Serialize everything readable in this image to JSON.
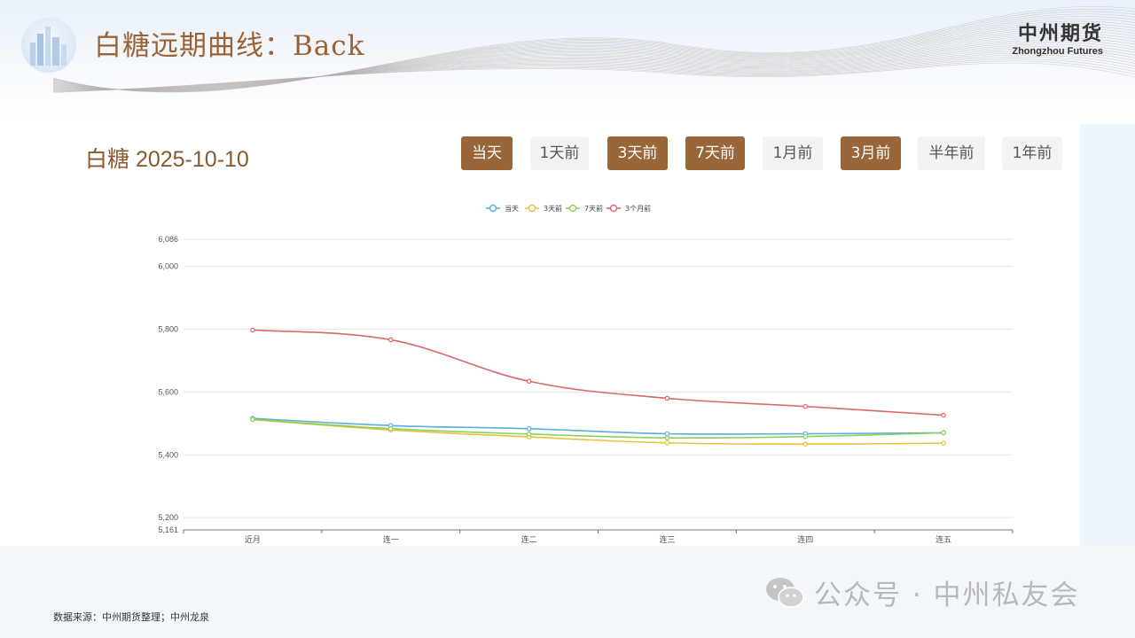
{
  "page": {
    "title": "白糖远期曲线：Back",
    "brand_cn": "中州期货",
    "brand_en": "Zhongzhou Futures",
    "source_note": "数据来源：中州期货整理；中州龙泉",
    "watermark": "公众号 · 中州私友会"
  },
  "panel": {
    "heading": "白糖 2025-10-10",
    "buttons": [
      {
        "label": "当天",
        "active": true
      },
      {
        "label": "1天前",
        "active": false
      },
      {
        "label": "3天前",
        "active": true
      },
      {
        "label": "7天前",
        "active": true
      },
      {
        "label": "1月前",
        "active": false
      },
      {
        "label": "3月前",
        "active": true
      },
      {
        "label": "半年前",
        "active": false
      },
      {
        "label": "1年前",
        "active": false
      }
    ]
  },
  "chart_data": {
    "type": "line",
    "categories": [
      "近月",
      "连一",
      "连二",
      "连三",
      "连四",
      "连五"
    ],
    "series": [
      {
        "name": "当天",
        "color": "#5aaedb",
        "values": [
          5516,
          5493,
          5483,
          5467,
          5467,
          5470
        ]
      },
      {
        "name": "3天前",
        "color": "#e8c13f",
        "values": [
          5512,
          5479,
          5457,
          5438,
          5434,
          5437
        ]
      },
      {
        "name": "7天前",
        "color": "#8ccf5f",
        "values": [
          5513,
          5483,
          5466,
          5454,
          5458,
          5470
        ]
      },
      {
        "name": "3个月前",
        "color": "#d9686a",
        "values": [
          5797,
          5766,
          5634,
          5580,
          5554,
          5526
        ]
      }
    ],
    "ylim": [
      5161,
      6086
    ],
    "yticks": [
      5161,
      5200,
      5400,
      5600,
      5800,
      6000,
      6086
    ],
    "ytick_labels": [
      "5,161",
      "5,200",
      "5,400",
      "5,600",
      "5,800",
      "6,000",
      "6,086"
    ],
    "grid": true,
    "legend": "top-center"
  }
}
